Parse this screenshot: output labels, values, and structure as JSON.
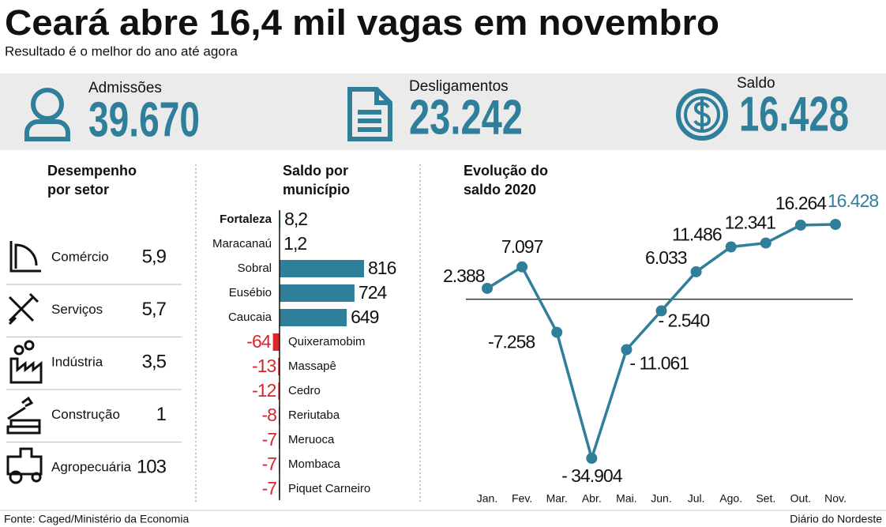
{
  "header": {
    "title": "Ceará abre 16,4 mil vagas em novembro",
    "subtitle": "Resultado é o melhor do ano até agora"
  },
  "stats": [
    {
      "label": "Admissões",
      "value": "39.670"
    },
    {
      "label": "Desligamentos",
      "value": "23.242"
    },
    {
      "label": "Saldo",
      "value": "16.428"
    }
  ],
  "sectors": {
    "title": "Desempenho por setor",
    "rows": [
      {
        "name": "Comércio",
        "value": "5,9"
      },
      {
        "name": "Serviços",
        "value": "5,7"
      },
      {
        "name": "Indústria",
        "value": "3,5"
      },
      {
        "name": "Construção",
        "value": "1"
      },
      {
        "name": "Agropecuária",
        "value": "103"
      }
    ]
  },
  "chart_data": [
    {
      "type": "hbar",
      "title": "Saldo por município",
      "categories": [
        "Fortaleza",
        "Maracanaú",
        "Sobral",
        "Eusébio",
        "Caucaia",
        "Quixeramobim",
        "Massapê",
        "Cedro",
        "Reriutaba",
        "Meruoca",
        "Mombaca",
        "Piquet Carneiro"
      ],
      "values": [
        8.2,
        1.2,
        816,
        724,
        649,
        -64,
        -13,
        -12,
        -8,
        -7,
        -7,
        -7
      ],
      "value_labels": [
        "8,2",
        "1,2",
        "816",
        "724",
        "649",
        "-64",
        "-13",
        "-12",
        "-8",
        "-7",
        "-7",
        "-7"
      ],
      "color": "#2f7f9b",
      "negative_color": "#d9262c"
    },
    {
      "type": "line",
      "title": "Evolução do saldo 2020",
      "categories": [
        "Jan.",
        "Fev.",
        "Mar.",
        "Abr.",
        "Mai.",
        "Jun.",
        "Jul.",
        "Ago.",
        "Set.",
        "Out.",
        "Nov."
      ],
      "values": [
        2388,
        7097,
        -7258,
        -34904,
        -11061,
        -2540,
        6033,
        11486,
        12341,
        16264,
        16428
      ],
      "value_labels": [
        "2.388",
        "7.097",
        "-7.258",
        "- 34.904",
        "- 11.061",
        "- 2.540",
        "6.033",
        "11.486",
        "12.341",
        "16.264",
        "16.428"
      ],
      "color": "#2f7f9b"
    }
  ],
  "footer": {
    "source": "Fonte: Caged/Ministério da Economia",
    "credit": "Diário do Nordeste"
  }
}
